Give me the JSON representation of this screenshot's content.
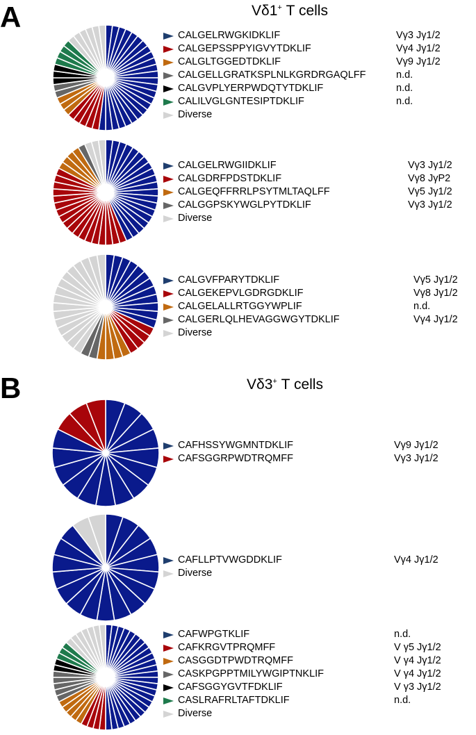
{
  "panel_a": {
    "letter": "A",
    "title": "Vδ1",
    "title_sup": "+",
    "title_suffix": " T cells"
  },
  "panel_b": {
    "letter": "B",
    "title": "Vδ3",
    "title_sup": "+",
    "title_suffix": "  T cells"
  },
  "colors": {
    "blue": "#0a1a8c",
    "red": "#a8050a",
    "orange": "#c06a10",
    "gray": "#666666",
    "black": "#000000",
    "green": "#1e7a4c",
    "lightgray": "#d4d4d4",
    "arrow_blue": "#1f3e6e"
  },
  "chart_data": [
    {
      "type": "pie",
      "panel": "A",
      "slices": {
        "blue": 25,
        "red": 5,
        "orange": 3,
        "gray": 2,
        "black": 3,
        "green": 4,
        "lightgray": 6
      },
      "legend": [
        {
          "color": "blue",
          "seq": "CALGELRWGKIDKLIF",
          "v": "Vγ3 Jγ1/2"
        },
        {
          "color": "red",
          "seq": "CALGEPSSPPYIGVYTDKLIF",
          "v": "Vγ4 Jγ1/2"
        },
        {
          "color": "orange",
          "seq": "CALGLTGGEDTDKLIF",
          "v": "Vγ9 Jγ1/2"
        },
        {
          "color": "gray",
          "seq": "CALGELLGRATKSPLNLKGRDRGAQLFF",
          "v": "n.d."
        },
        {
          "color": "black",
          "seq": "CALGVPLYERPWDQTYTDKLIF",
          "v": "n.d."
        },
        {
          "color": "green",
          "seq": "CALILVGLGNTESIPTDKLIF",
          "v": "n.d."
        },
        {
          "color": "lightgray",
          "seq": "Diverse",
          "v": ""
        }
      ]
    },
    {
      "type": "pie",
      "panel": "A",
      "slices": {
        "blue": 20,
        "red": 18,
        "orange": 4,
        "gray": 1,
        "lightgray": 3
      },
      "legend": [
        {
          "color": "blue",
          "seq": "CALGELRWGIIDKLIF",
          "v": "Vγ3 Jγ1/2"
        },
        {
          "color": "red",
          "seq": "CALGDRFPDSTDKLIF",
          "v": "Vγ8 JγP2"
        },
        {
          "color": "orange",
          "seq": "CALGEQFFRRLPSYTMLTAQLFF",
          "v": "Vγ5 Jγ1/2"
        },
        {
          "color": "gray",
          "seq": "CALGGPSKYWGLPYTDKLIF",
          "v": "Vγ3 Jγ1/2"
        },
        {
          "color": "lightgray",
          "seq": "Diverse",
          "v": ""
        }
      ]
    },
    {
      "type": "pie",
      "panel": "A",
      "slices": {
        "blue": 12,
        "red": 4,
        "orange": 4,
        "gray": 2,
        "lightgray": 16
      },
      "legend": [
        {
          "color": "blue",
          "seq": "CALGVFPARYTDKLIF",
          "v": "Vγ5 Jγ1/2"
        },
        {
          "color": "red",
          "seq": "CALGEKEPVLGDRGDKLIF",
          "v": "Vγ8 Jγ1/2"
        },
        {
          "color": "orange",
          "seq": "CALGELALLRTGGYWPLIF",
          "v": "n.d."
        },
        {
          "color": "gray",
          "seq": "CALGERLQLHEVAGGWGYTDKLIF",
          "v": "Vγ4 Jγ1/2"
        },
        {
          "color": "lightgray",
          "seq": "Diverse",
          "v": ""
        }
      ]
    },
    {
      "type": "pie",
      "panel": "B",
      "slices": {
        "blue": 14,
        "red": 3
      },
      "legend": [
        {
          "color": "blue",
          "seq": "CAFHSSYWGMNTDKLIF",
          "v": "Vγ9 Jγ1/2"
        },
        {
          "color": "red",
          "seq": "CAFSGGRPWDTRQMFF",
          "v": "Vγ3 Jγ1/2"
        }
      ]
    },
    {
      "type": "pie",
      "panel": "B",
      "slices": {
        "blue": 17,
        "lightgray": 2
      },
      "legend": [
        {
          "color": "blue",
          "seq": "CAFLLPTVWGDDKLIF",
          "v": "Vγ4 Jγ1/2"
        },
        {
          "color": "lightgray",
          "seq": "Diverse",
          "v": ""
        }
      ]
    },
    {
      "type": "pie",
      "panel": "B",
      "slices": {
        "blue": 26,
        "red": 4,
        "orange": 5,
        "gray": 5,
        "black": 2,
        "green": 3,
        "lightgray": 7
      },
      "legend": [
        {
          "color": "blue",
          "seq": "CAFWPGTKLIF",
          "v": "n.d."
        },
        {
          "color": "red",
          "seq": "CAFKRGVTPRQMFF",
          "v": "V γ5 Jγ1/2"
        },
        {
          "color": "orange",
          "seq": "CASGGDTPWDTRQMFF",
          "v": "V γ4 Jγ1/2"
        },
        {
          "color": "gray",
          "seq": "CASKPGPPTMILYWGIPTNKLIF",
          "v": "V γ4 Jγ1/2"
        },
        {
          "color": "black",
          "seq": "CAFSGGYGVTFDKLIF",
          "v": "V γ3 Jγ1/2"
        },
        {
          "color": "green",
          "seq": "CASLRAFRLTAFTDKLIF",
          "v": "n.d."
        },
        {
          "color": "lightgray",
          "seq": "Diverse",
          "v": ""
        }
      ]
    }
  ]
}
